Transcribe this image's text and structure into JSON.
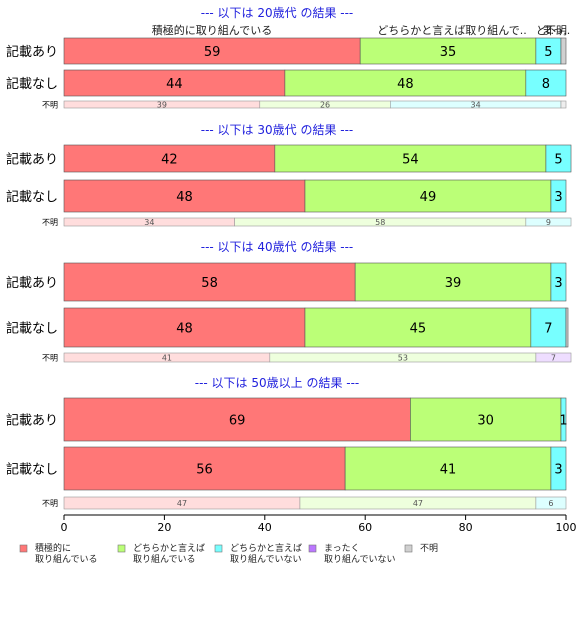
{
  "chart_data": {
    "type": "bar",
    "orientation": "horizontal",
    "stacked": "percent",
    "xlim": [
      0,
      100
    ],
    "x_ticks": [
      0,
      20,
      40,
      60,
      80,
      100
    ],
    "legend_placement": "bottom",
    "categories": [
      "積極的に\n取り組んでいる",
      "どちらかと言えば\n取り組んでいる",
      "どちらかと言えば\n取り組んでいない",
      "まったく\n取り組んでいない",
      "不明"
    ],
    "colors": {
      "full": [
        "#ff7777",
        "#bbff77",
        "#77ffff",
        "#bb77ff",
        "#d0d0d0"
      ],
      "light": [
        "#ffdddd",
        "#eeffdd",
        "#ddffff",
        "#eeddff",
        "#eeeeee"
      ]
    },
    "top_annotations": [
      "積極的に取り組んでいる",
      "どちらかと言えば取り組んで..",
      "ど..",
      "まっ..",
      "不明"
    ],
    "groups": [
      {
        "title": "--- 以下は 20歳代 の結果 ---",
        "rows": [
          {
            "label": "記載あり",
            "values": [
              59,
              35,
              5,
              0,
              1
            ],
            "shown": [
              "59",
              "35",
              "5",
              "",
              ""
            ]
          },
          {
            "label": "記載なし",
            "values": [
              44,
              48,
              8,
              0,
              0
            ],
            "shown": [
              "44",
              "48",
              "8",
              "",
              ""
            ]
          },
          {
            "label": "不明",
            "values": [
              39,
              26,
              34,
              0,
              1
            ],
            "shown": [
              "39",
              "26",
              "34",
              "",
              ""
            ]
          }
        ]
      },
      {
        "title": "--- 以下は 30歳代 の結果 ---",
        "rows": [
          {
            "label": "記載あり",
            "values": [
              42,
              54,
              5,
              0,
              0
            ],
            "shown": [
              "42",
              "54",
              "5",
              "",
              ""
            ]
          },
          {
            "label": "記載なし",
            "values": [
              48,
              49,
              3,
              0,
              0
            ],
            "shown": [
              "48",
              "49",
              "3",
              "",
              ""
            ]
          },
          {
            "label": "不明",
            "values": [
              34,
              58,
              9,
              0,
              0
            ],
            "shown": [
              "34",
              "58",
              "9",
              "",
              ""
            ]
          }
        ]
      },
      {
        "title": "--- 以下は 40歳代 の結果 ---",
        "rows": [
          {
            "label": "記載あり",
            "values": [
              58,
              39,
              3,
              0,
              0
            ],
            "shown": [
              "58",
              "39",
              "3",
              "",
              ""
            ]
          },
          {
            "label": "記載なし",
            "values": [
              48,
              45,
              7,
              0,
              0.4
            ],
            "shown": [
              "48",
              "45",
              "7",
              "",
              ""
            ]
          },
          {
            "label": "不明",
            "values": [
              41,
              53,
              0,
              7,
              0
            ],
            "shown": [
              "41",
              "53",
              "",
              "7",
              ""
            ]
          }
        ]
      },
      {
        "title": "--- 以下は 50歳以上 の結果 ---",
        "rows": [
          {
            "label": "記載あり",
            "values": [
              69,
              30,
              1,
              0,
              0
            ],
            "shown": [
              "69",
              "30",
              "1",
              "",
              ""
            ]
          },
          {
            "label": "記載なし",
            "values": [
              56,
              41,
              3,
              0,
              0
            ],
            "shown": [
              "56",
              "41",
              "3",
              "",
              ""
            ]
          },
          {
            "label": "不明",
            "values": [
              47,
              47,
              6,
              0,
              0
            ],
            "shown": [
              "47",
              "47",
              "6",
              "",
              ""
            ]
          }
        ]
      }
    ]
  }
}
